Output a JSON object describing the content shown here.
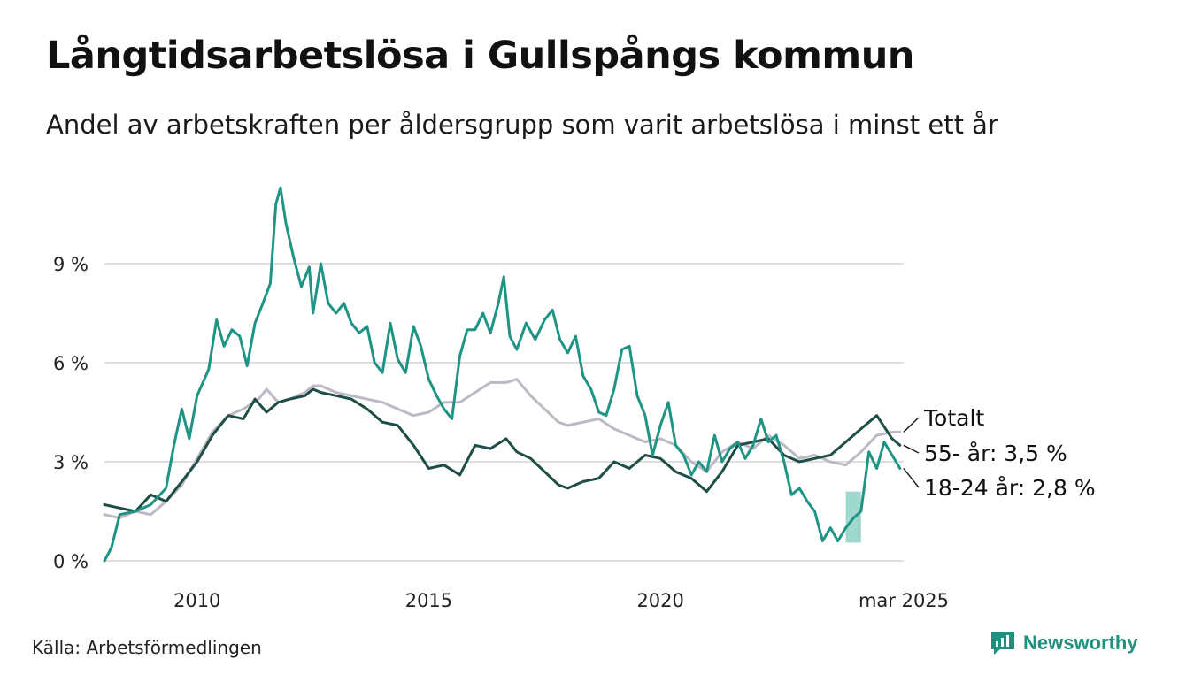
{
  "title": "Långtidsarbetslösa i Gullspångs kommun",
  "subtitle": "Andel av arbetskraften per åldersgrupp som varit arbetslösa i minst ett år",
  "source": "Källa: Arbetsförmedlingen",
  "brand": {
    "name": "Newsworthy",
    "icon": "newsworthy-logo-icon",
    "color": "#23907f"
  },
  "chart_data": {
    "type": "line",
    "title": "Långtidsarbetslösa i Gullspångs kommun",
    "subtitle": "Andel av arbetskraften per åldersgrupp som varit arbetslösa i minst ett år",
    "xlabel": "",
    "ylabel": "",
    "x_ticks": [
      "2010",
      "2015",
      "2020",
      "mar 2025"
    ],
    "x_tick_values": [
      2010,
      2015,
      2020,
      2025.17
    ],
    "xlim": [
      2008.0,
      2025.25
    ],
    "y_ticks": [
      "0 %",
      "3 %",
      "6 %",
      "9 %"
    ],
    "y_tick_values": [
      0,
      3,
      6,
      9
    ],
    "ylim": [
      0,
      12
    ],
    "grid": "horizontal",
    "legend": "direct labels at right end of lines",
    "series": [
      {
        "name": "Totalt",
        "label": "Totalt",
        "color": "#bdb8c6",
        "points": [
          [
            2008.0,
            1.4
          ],
          [
            2008.33,
            1.3
          ],
          [
            2008.67,
            1.5
          ],
          [
            2009.0,
            1.4
          ],
          [
            2009.33,
            1.8
          ],
          [
            2009.67,
            2.3
          ],
          [
            2010.0,
            3.1
          ],
          [
            2010.33,
            3.9
          ],
          [
            2010.67,
            4.4
          ],
          [
            2011.0,
            4.6
          ],
          [
            2011.33,
            4.9
          ],
          [
            2011.5,
            5.2
          ],
          [
            2011.75,
            4.8
          ],
          [
            2012.0,
            4.9
          ],
          [
            2012.33,
            5.1
          ],
          [
            2012.5,
            5.3
          ],
          [
            2012.67,
            5.3
          ],
          [
            2013.0,
            5.1
          ],
          [
            2013.33,
            5.0
          ],
          [
            2013.67,
            4.9
          ],
          [
            2014.0,
            4.8
          ],
          [
            2014.33,
            4.6
          ],
          [
            2014.67,
            4.4
          ],
          [
            2015.0,
            4.5
          ],
          [
            2015.33,
            4.8
          ],
          [
            2015.67,
            4.8
          ],
          [
            2016.0,
            5.1
          ],
          [
            2016.33,
            5.4
          ],
          [
            2016.67,
            5.4
          ],
          [
            2016.9,
            5.5
          ],
          [
            2017.2,
            5.0
          ],
          [
            2017.5,
            4.6
          ],
          [
            2017.8,
            4.2
          ],
          [
            2018.0,
            4.1
          ],
          [
            2018.33,
            4.2
          ],
          [
            2018.67,
            4.3
          ],
          [
            2019.0,
            4.0
          ],
          [
            2019.33,
            3.8
          ],
          [
            2019.67,
            3.6
          ],
          [
            2020.0,
            3.7
          ],
          [
            2020.33,
            3.5
          ],
          [
            2020.67,
            3.0
          ],
          [
            2021.0,
            2.7
          ],
          [
            2021.33,
            3.3
          ],
          [
            2021.67,
            3.6
          ],
          [
            2022.0,
            3.4
          ],
          [
            2022.33,
            3.8
          ],
          [
            2022.67,
            3.5
          ],
          [
            2023.0,
            3.1
          ],
          [
            2023.33,
            3.2
          ],
          [
            2023.67,
            3.0
          ],
          [
            2024.0,
            2.9
          ],
          [
            2024.33,
            3.3
          ],
          [
            2024.67,
            3.8
          ],
          [
            2025.0,
            3.9
          ],
          [
            2025.17,
            3.9
          ]
        ]
      },
      {
        "name": "55- år",
        "label": "55- år: 3,5 %",
        "color": "#1f4e47",
        "points": [
          [
            2008.0,
            1.7
          ],
          [
            2008.33,
            1.6
          ],
          [
            2008.67,
            1.5
          ],
          [
            2009.0,
            2.0
          ],
          [
            2009.33,
            1.8
          ],
          [
            2009.67,
            2.4
          ],
          [
            2010.0,
            3.0
          ],
          [
            2010.33,
            3.8
          ],
          [
            2010.67,
            4.4
          ],
          [
            2011.0,
            4.3
          ],
          [
            2011.25,
            4.9
          ],
          [
            2011.5,
            4.5
          ],
          [
            2011.75,
            4.8
          ],
          [
            2012.0,
            4.9
          ],
          [
            2012.33,
            5.0
          ],
          [
            2012.5,
            5.2
          ],
          [
            2012.67,
            5.1
          ],
          [
            2013.0,
            5.0
          ],
          [
            2013.33,
            4.9
          ],
          [
            2013.67,
            4.6
          ],
          [
            2014.0,
            4.2
          ],
          [
            2014.33,
            4.1
          ],
          [
            2014.67,
            3.5
          ],
          [
            2015.0,
            2.8
          ],
          [
            2015.33,
            2.9
          ],
          [
            2015.67,
            2.6
          ],
          [
            2016.0,
            3.5
          ],
          [
            2016.33,
            3.4
          ],
          [
            2016.67,
            3.7
          ],
          [
            2016.9,
            3.3
          ],
          [
            2017.2,
            3.1
          ],
          [
            2017.5,
            2.7
          ],
          [
            2017.8,
            2.3
          ],
          [
            2018.0,
            2.2
          ],
          [
            2018.33,
            2.4
          ],
          [
            2018.67,
            2.5
          ],
          [
            2019.0,
            3.0
          ],
          [
            2019.33,
            2.8
          ],
          [
            2019.67,
            3.2
          ],
          [
            2020.0,
            3.1
          ],
          [
            2020.33,
            2.7
          ],
          [
            2020.67,
            2.5
          ],
          [
            2021.0,
            2.1
          ],
          [
            2021.33,
            2.7
          ],
          [
            2021.67,
            3.5
          ],
          [
            2022.0,
            3.6
          ],
          [
            2022.33,
            3.7
          ],
          [
            2022.67,
            3.2
          ],
          [
            2023.0,
            3.0
          ],
          [
            2023.33,
            3.1
          ],
          [
            2023.67,
            3.2
          ],
          [
            2024.0,
            3.6
          ],
          [
            2024.33,
            4.0
          ],
          [
            2024.67,
            4.4
          ],
          [
            2025.0,
            3.7
          ],
          [
            2025.17,
            3.5
          ]
        ]
      },
      {
        "name": "18-24 år",
        "label": "18-24 år: 2,8 %",
        "color": "#1e9484",
        "points": [
          [
            2008.0,
            0.0
          ],
          [
            2008.15,
            0.4
          ],
          [
            2008.33,
            1.4
          ],
          [
            2008.67,
            1.5
          ],
          [
            2009.0,
            1.7
          ],
          [
            2009.33,
            2.2
          ],
          [
            2009.5,
            3.5
          ],
          [
            2009.67,
            4.6
          ],
          [
            2009.83,
            3.7
          ],
          [
            2010.0,
            5.0
          ],
          [
            2010.25,
            5.8
          ],
          [
            2010.42,
            7.3
          ],
          [
            2010.58,
            6.5
          ],
          [
            2010.75,
            7.0
          ],
          [
            2010.92,
            6.8
          ],
          [
            2011.08,
            5.9
          ],
          [
            2011.25,
            7.2
          ],
          [
            2011.42,
            7.8
          ],
          [
            2011.58,
            8.4
          ],
          [
            2011.7,
            10.8
          ],
          [
            2011.8,
            11.3
          ],
          [
            2011.92,
            10.2
          ],
          [
            2012.08,
            9.2
          ],
          [
            2012.25,
            8.3
          ],
          [
            2012.42,
            8.9
          ],
          [
            2012.5,
            7.5
          ],
          [
            2012.67,
            9.0
          ],
          [
            2012.83,
            7.8
          ],
          [
            2013.0,
            7.5
          ],
          [
            2013.17,
            7.8
          ],
          [
            2013.33,
            7.2
          ],
          [
            2013.5,
            6.9
          ],
          [
            2013.67,
            7.1
          ],
          [
            2013.83,
            6.0
          ],
          [
            2014.0,
            5.7
          ],
          [
            2014.17,
            7.2
          ],
          [
            2014.33,
            6.1
          ],
          [
            2014.5,
            5.7
          ],
          [
            2014.67,
            7.1
          ],
          [
            2014.83,
            6.5
          ],
          [
            2015.0,
            5.5
          ],
          [
            2015.17,
            5.0
          ],
          [
            2015.33,
            4.6
          ],
          [
            2015.5,
            4.3
          ],
          [
            2015.67,
            6.2
          ],
          [
            2015.83,
            7.0
          ],
          [
            2016.0,
            7.0
          ],
          [
            2016.17,
            7.5
          ],
          [
            2016.33,
            6.9
          ],
          [
            2016.5,
            7.8
          ],
          [
            2016.62,
            8.6
          ],
          [
            2016.75,
            6.8
          ],
          [
            2016.9,
            6.4
          ],
          [
            2017.1,
            7.2
          ],
          [
            2017.3,
            6.7
          ],
          [
            2017.5,
            7.3
          ],
          [
            2017.67,
            7.6
          ],
          [
            2017.83,
            6.7
          ],
          [
            2018.0,
            6.3
          ],
          [
            2018.17,
            6.8
          ],
          [
            2018.33,
            5.6
          ],
          [
            2018.5,
            5.2
          ],
          [
            2018.67,
            4.5
          ],
          [
            2018.83,
            4.4
          ],
          [
            2019.0,
            5.2
          ],
          [
            2019.17,
            6.4
          ],
          [
            2019.33,
            6.5
          ],
          [
            2019.5,
            5.0
          ],
          [
            2019.67,
            4.4
          ],
          [
            2019.83,
            3.2
          ],
          [
            2020.0,
            4.1
          ],
          [
            2020.17,
            4.8
          ],
          [
            2020.33,
            3.5
          ],
          [
            2020.5,
            3.2
          ],
          [
            2020.67,
            2.6
          ],
          [
            2020.83,
            3.0
          ],
          [
            2021.0,
            2.7
          ],
          [
            2021.17,
            3.8
          ],
          [
            2021.33,
            3.0
          ],
          [
            2021.5,
            3.4
          ],
          [
            2021.67,
            3.6
          ],
          [
            2021.83,
            3.1
          ],
          [
            2022.0,
            3.5
          ],
          [
            2022.17,
            4.3
          ],
          [
            2022.33,
            3.6
          ],
          [
            2022.5,
            3.8
          ],
          [
            2022.67,
            3.0
          ],
          [
            2022.83,
            2.0
          ],
          [
            2023.0,
            2.2
          ],
          [
            2023.17,
            1.8
          ],
          [
            2023.33,
            1.5
          ],
          [
            2023.5,
            0.6
          ],
          [
            2023.67,
            1.0
          ],
          [
            2023.83,
            0.6
          ],
          [
            2024.0,
            1.0
          ],
          [
            2024.17,
            1.3
          ],
          [
            2024.33,
            1.5
          ],
          [
            2024.5,
            3.3
          ],
          [
            2024.67,
            2.8
          ],
          [
            2024.83,
            3.6
          ],
          [
            2025.0,
            3.2
          ],
          [
            2025.17,
            2.8
          ]
        ],
        "uncertainty_band": {
          "x": [
            2024.0,
            2024.33
          ],
          "y": [
            0.55,
            2.1
          ],
          "color": "#8fd1c6"
        }
      }
    ]
  }
}
